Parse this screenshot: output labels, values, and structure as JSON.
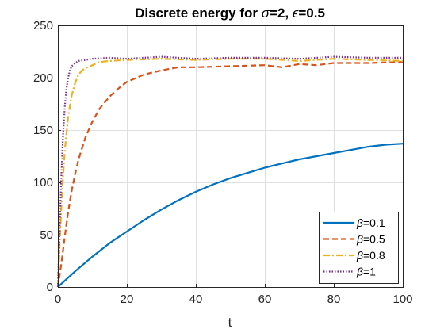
{
  "chart_data": {
    "type": "line",
    "title": {
      "prefix": "Discrete energy for ",
      "sym1": "σ",
      "mid": "=2, ",
      "sym2": "ϵ",
      "suffix": "=0.5"
    },
    "xlabel": "t",
    "ylabel": "",
    "xlim": [
      0,
      100
    ],
    "ylim": [
      0,
      250
    ],
    "xticks": [
      0,
      20,
      40,
      60,
      80,
      100
    ],
    "yticks": [
      0,
      50,
      100,
      150,
      200,
      250
    ],
    "grid": true,
    "legend_position": "bottom-right",
    "series": [
      {
        "name": "β=0.1",
        "sym": "β",
        "val": "=0.1",
        "color": "#0072BD",
        "style": "solid",
        "x": [
          0,
          2,
          5,
          10,
          15,
          20,
          25,
          30,
          35,
          40,
          45,
          50,
          55,
          60,
          65,
          70,
          75,
          80,
          85,
          90,
          95,
          100
        ],
        "y": [
          0,
          6,
          15,
          29,
          42,
          53,
          64,
          74,
          83,
          91,
          98,
          104,
          109,
          114,
          118,
          122,
          125,
          128,
          131,
          134,
          136,
          137
        ]
      },
      {
        "name": "β=0.5",
        "sym": "β",
        "val": "=0.5",
        "color": "#D95319",
        "style": "dashed",
        "x": [
          0,
          1,
          2,
          3,
          4,
          5,
          6,
          8,
          10,
          12,
          15,
          18,
          20,
          25,
          30,
          35,
          40,
          50,
          60,
          65,
          70,
          75,
          80,
          90,
          100
        ],
        "y": [
          0,
          22,
          48,
          72,
          92,
          108,
          122,
          143,
          158,
          170,
          182,
          191,
          196,
          203,
          207,
          210,
          210,
          211,
          212,
          210,
          213,
          212,
          214,
          214,
          215
        ]
      },
      {
        "name": "β=0.8",
        "sym": "β",
        "val": "=0.8",
        "color": "#EDB120",
        "style": "dashdot",
        "x": [
          0,
          0.5,
          1,
          1.5,
          2,
          3,
          4,
          5,
          6,
          7,
          8,
          10,
          12,
          15,
          20,
          30,
          40,
          50,
          60,
          70,
          80,
          90,
          100
        ],
        "y": [
          0,
          40,
          75,
          105,
          130,
          163,
          183,
          195,
          203,
          207,
          209,
          212,
          215,
          216,
          217,
          218,
          217,
          218,
          218,
          216,
          218,
          217,
          216
        ]
      },
      {
        "name": "β=1",
        "sym": "β",
        "val": "=1",
        "color": "#7E2F8E",
        "style": "dotted",
        "x": [
          0,
          0.5,
          1,
          1.5,
          2,
          2.5,
          3,
          3.5,
          4,
          5,
          6,
          8,
          10,
          15,
          20,
          30,
          40,
          50,
          60,
          70,
          80,
          90,
          100
        ],
        "y": [
          0,
          55,
          105,
          145,
          172,
          190,
          200,
          207,
          211,
          214,
          216,
          217,
          218,
          219,
          218,
          220,
          218,
          219,
          219,
          218,
          220,
          219,
          219
        ]
      }
    ]
  }
}
